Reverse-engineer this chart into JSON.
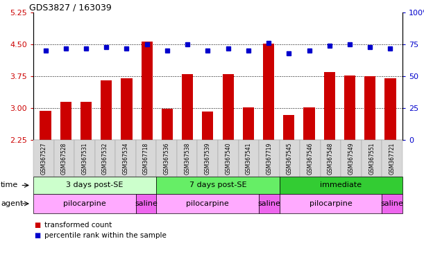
{
  "title": "GDS3827 / 163039",
  "samples": [
    "GSM367527",
    "GSM367528",
    "GSM367531",
    "GSM367532",
    "GSM367534",
    "GSM367718",
    "GSM367536",
    "GSM367538",
    "GSM367539",
    "GSM367540",
    "GSM367541",
    "GSM367719",
    "GSM367545",
    "GSM367546",
    "GSM367548",
    "GSM367549",
    "GSM367551",
    "GSM367721"
  ],
  "bar_values": [
    2.93,
    3.15,
    3.14,
    3.65,
    3.7,
    4.57,
    2.98,
    3.8,
    2.92,
    3.8,
    3.02,
    4.52,
    2.83,
    3.02,
    3.85,
    3.77,
    3.75,
    3.7
  ],
  "dot_values": [
    70,
    72,
    72,
    73,
    72,
    75,
    70,
    75,
    70,
    72,
    70,
    76,
    68,
    70,
    74,
    75,
    73,
    72
  ],
  "bar_color": "#cc0000",
  "dot_color": "#0000cc",
  "ylim_left": [
    2.25,
    5.25
  ],
  "ylim_right": [
    0,
    100
  ],
  "yticks_left": [
    2.25,
    3.0,
    3.75,
    4.5,
    5.25
  ],
  "yticks_right": [
    0,
    25,
    50,
    75,
    100
  ],
  "hlines": [
    3.0,
    3.75,
    4.5
  ],
  "time_groups": [
    {
      "label": "3 days post-SE",
      "start": 0,
      "end": 5,
      "color": "#ccffcc"
    },
    {
      "label": "7 days post-SE",
      "start": 6,
      "end": 11,
      "color": "#66ee66"
    },
    {
      "label": "immediate",
      "start": 12,
      "end": 17,
      "color": "#33cc33"
    }
  ],
  "agent_groups": [
    {
      "label": "pilocarpine",
      "start": 0,
      "end": 4,
      "color": "#ffaaff"
    },
    {
      "label": "saline",
      "start": 5,
      "end": 5,
      "color": "#ee66ee"
    },
    {
      "label": "pilocarpine",
      "start": 6,
      "end": 10,
      "color": "#ffaaff"
    },
    {
      "label": "saline",
      "start": 11,
      "end": 11,
      "color": "#ee66ee"
    },
    {
      "label": "pilocarpine",
      "start": 12,
      "end": 16,
      "color": "#ffaaff"
    },
    {
      "label": "saline",
      "start": 17,
      "end": 17,
      "color": "#ee66ee"
    }
  ],
  "legend_items": [
    {
      "label": "transformed count",
      "color": "#cc0000"
    },
    {
      "label": "percentile rank within the sample",
      "color": "#0000cc"
    }
  ],
  "background_color": "#ffffff",
  "tick_label_color_left": "#cc0000",
  "tick_label_color_right": "#0000cc",
  "n_samples": 18
}
